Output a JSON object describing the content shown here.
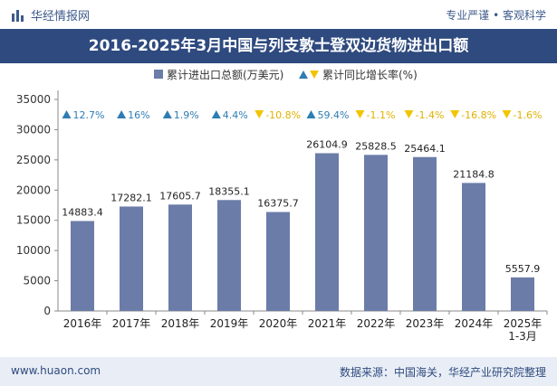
{
  "header": {
    "brand": "华经情报网",
    "tags": "专业严谨 • 客观科学"
  },
  "footer": {
    "website": "www.huaon.com",
    "source": "数据来源：中国海关，华经产业研究院整理"
  },
  "colors": {
    "bar": "#6b7ca8",
    "up": "#2e7db3",
    "down": "#f2c500",
    "title_bg": "#2e4a7f"
  },
  "chart_data": {
    "type": "bar",
    "title": "2016-2025年3月中国与列支敦士登双边货物进出口额",
    "categories": [
      "2016年",
      "2017年",
      "2018年",
      "2019年",
      "2020年",
      "2021年",
      "2022年",
      "2023年",
      "2024年",
      "2025年\n1-3月"
    ],
    "series": [
      {
        "name": "累计进出口总额(万美元)",
        "values": [
          14883.4,
          17282.1,
          17605.7,
          18355.1,
          16375.7,
          26104.9,
          25828.5,
          25464.1,
          21184.8,
          5557.9
        ]
      },
      {
        "name": "累计同比增长率(%)",
        "values": [
          12.7,
          16,
          1.9,
          4.4,
          -10.8,
          59.4,
          -1.1,
          -1.4,
          -16.8,
          -1.6
        ]
      }
    ],
    "growth_labels": [
      "12.7%",
      "16%",
      "1.9%",
      "4.4%",
      "-10.8%",
      "59.4%",
      "-1.1%",
      "-1.4%",
      "-16.8%",
      "-1.6%"
    ],
    "bar_labels": [
      "14883.4",
      "17282.1",
      "17605.7",
      "18355.1",
      "16375.7",
      "26104.9",
      "25828.5",
      "25464.1",
      "21184.8",
      "5557.9"
    ],
    "yticks": [
      "0",
      "5000",
      "10000",
      "15000",
      "20000",
      "25000",
      "30000",
      "35000"
    ],
    "ylim": [
      0,
      35000
    ],
    "legend_position": "top"
  }
}
